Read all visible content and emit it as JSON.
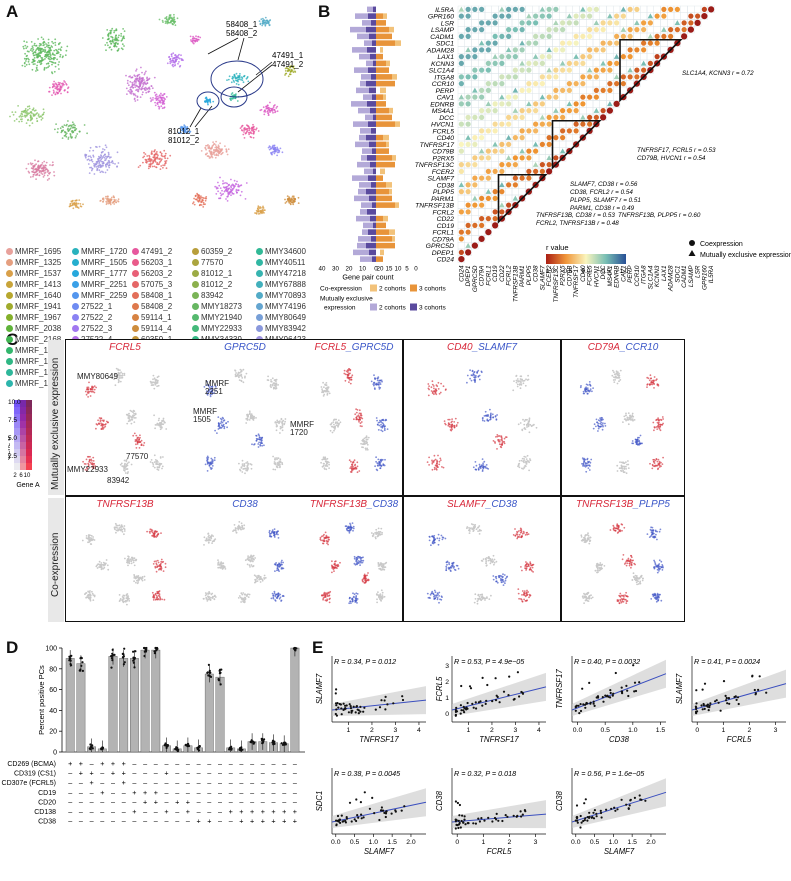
{
  "panels": {
    "a": "A",
    "b": "B",
    "c": "C",
    "d": "D",
    "e": "E"
  },
  "panel_a": {
    "annotations": [
      "58408_1",
      "58408_2",
      "47491_1",
      "47491_2",
      "81012_1",
      "81012_2"
    ],
    "legend_columns": [
      [
        {
          "label": "MMRF_1695",
          "color": "#e8a19b"
        },
        {
          "label": "MMRF_1325",
          "color": "#e59f80"
        },
        {
          "label": "MMRF_1537",
          "color": "#d9a04a"
        },
        {
          "label": "MMRF_1413",
          "color": "#c8a43a"
        },
        {
          "label": "MMRF_1640",
          "color": "#b7a72e"
        },
        {
          "label": "MMRF_1941",
          "color": "#a0ab2c"
        },
        {
          "label": "MMRF_1967",
          "color": "#84b02a"
        },
        {
          "label": "MMRF_2038",
          "color": "#5fb33a"
        },
        {
          "label": "MMRF_2168",
          "color": "#40b551"
        },
        {
          "label": "MMRF_1267",
          "color": "#32b66c"
        },
        {
          "label": "MMRF_1686",
          "color": "#2fb784"
        },
        {
          "label": "MMRF_1641",
          "color": "#2eb79a"
        },
        {
          "label": "MMRF_1424",
          "color": "#2db5ac"
        }
      ],
      [
        {
          "label": "MMRF_1720",
          "color": "#2ab2bd"
        },
        {
          "label": "MMRF_1505",
          "color": "#25aece"
        },
        {
          "label": "MMRF_1777",
          "color": "#27a8dc"
        },
        {
          "label": "MMRF_2251",
          "color": "#3aa0e7"
        },
        {
          "label": "MMRF_2259",
          "color": "#5496ee"
        },
        {
          "label": "27522_1",
          "color": "#6f8cf2"
        },
        {
          "label": "27522_2",
          "color": "#8a82f3"
        },
        {
          "label": "27522_3",
          "color": "#a178f0"
        },
        {
          "label": "27522_4",
          "color": "#b46fea"
        },
        {
          "label": "27522_5",
          "color": "#c566e0"
        },
        {
          "label": "27522_6",
          "color": "#d25fd3"
        },
        {
          "label": "37692_2",
          "color": "#dc5ac3"
        },
        {
          "label": "47491_1",
          "color": "#e358b1"
        }
      ],
      [
        {
          "label": "47491_2",
          "color": "#e7589e"
        },
        {
          "label": "56203_1",
          "color": "#e95b8a"
        },
        {
          "label": "56203_2",
          "color": "#e86077"
        },
        {
          "label": "57075_3",
          "color": "#e56767"
        },
        {
          "label": "58408_1",
          "color": "#e36f59"
        },
        {
          "label": "58408_2",
          "color": "#de794c"
        },
        {
          "label": "59114_1",
          "color": "#d78342"
        },
        {
          "label": "59114_4",
          "color": "#ce8d3c"
        },
        {
          "label": "60359_1",
          "color": "#c4963a"
        }
      ],
      [
        {
          "label": "60359_2",
          "color": "#b89e3b"
        },
        {
          "label": "77570",
          "color": "#aba53f"
        },
        {
          "label": "81012_1",
          "color": "#9cab45"
        },
        {
          "label": "81012_2",
          "color": "#8cb04d"
        },
        {
          "label": "83942",
          "color": "#7ab457"
        },
        {
          "label": "MMY18273",
          "color": "#67b762"
        },
        {
          "label": "MMY21940",
          "color": "#55b96e"
        },
        {
          "label": "MMY22933",
          "color": "#45ba7b"
        },
        {
          "label": "MMY34339",
          "color": "#38ba88"
        }
      ],
      [
        {
          "label": "MMY34600",
          "color": "#31b996"
        },
        {
          "label": "MMY40511",
          "color": "#31b7a3"
        },
        {
          "label": "MMY47218",
          "color": "#37b4b0"
        },
        {
          "label": "MMY67888",
          "color": "#42b0bc"
        },
        {
          "label": "MMY70893",
          "color": "#52abc7"
        },
        {
          "label": "MMY74196",
          "color": "#64a5d0"
        },
        {
          "label": "MMY80649",
          "color": "#779fd7"
        },
        {
          "label": "MMY83942",
          "color": "#8a98dc"
        },
        {
          "label": "MMY96423",
          "color": "#9d92de"
        }
      ]
    ]
  },
  "panel_b": {
    "genes": [
      "IL5RA",
      "GPR160",
      "LSR",
      "LSAMP",
      "CADM1",
      "SDC1",
      "ADAM28",
      "LAX1",
      "KCNN3",
      "SLC1A4",
      "ITGA8",
      "CCR10",
      "PERP",
      "CAV1",
      "EDNRB",
      "MS4A1",
      "DCC",
      "HVCN1",
      "FCRL5",
      "CD40",
      "TNFRSF17",
      "CD79B",
      "P2RX5",
      "TNFRSF13C",
      "FCER2",
      "SLAMF7",
      "CD38",
      "PLPP5",
      "PARM1",
      "TNFRSF13B",
      "FCRL2",
      "CD22",
      "CD19",
      "FCRL1",
      "CD79A",
      "GPRC5D",
      "DPEP1",
      "CD24"
    ],
    "annotations": [
      "SLC1A4, KCNN3 r = 0.72",
      "TNFRSF17, FCRL5 r = 0.53",
      "CD79B, HVCN1 r = 0.54",
      "SLAMF7, CD38 r = 0.56",
      "CD38, FCRL2 r = 0.54",
      "PLPP5, SLAMF7 r = 0.51",
      "PARM1, CD38 r = 0.49",
      "TNFRSF13B, CD38 r = 0.53",
      "TNFRSF13B, PLPP5 r = 0.60",
      "FCRL2, TNFRSF13B r = 0.48"
    ],
    "bar_axis_left": [
      "40",
      "30",
      "20",
      "10",
      "0"
    ],
    "bar_axis_right": [
      "20",
      "15",
      "10",
      "5",
      "0"
    ],
    "bar_axis_title": "Gene pair count",
    "bar_legend": {
      "coexp_label": "Co-expression",
      "mutex_label_1": "Mutually exclusive",
      "mutex_label_2": "expression",
      "items_coexp": [
        "2 cohorts",
        "3 cohorts"
      ],
      "items_mutex": [
        "2 cohorts",
        "3 cohorts"
      ]
    },
    "rvalue_title": "r value",
    "rvalue_ticks": [
      "1.0",
      "0.5",
      "0.0",
      "−0.5",
      "−1.0"
    ],
    "shape_legend": [
      "Coexpression",
      "Mutually exclusive expression"
    ],
    "colors": {
      "coexp_orange": "#e8943a",
      "coexp_light": "#f2c27a",
      "mutex_purple": "#5a4a9e",
      "mutex_light": "#b3a9d8"
    }
  },
  "panel_c": {
    "colorbar_ticks_b": [
      "10.0",
      "7.5",
      "5.0",
      "2.5"
    ],
    "colorbar_ticks_a": [
      "2",
      "6",
      "10"
    ],
    "gene_b_label": "Gene B",
    "gene_a_label": "Gene A",
    "row_labels": [
      "Mutually exclusive expression",
      "Co-expression"
    ],
    "rows": [
      [
        {
          "a": "FCRL5",
          "b": ""
        },
        {
          "a": "",
          "b": "GPRC5D"
        },
        {
          "a": "FCRL5",
          "b": "GPRC5D",
          "sep": "_"
        },
        {
          "a": "CD40",
          "b": "SLAMF7",
          "sep": "_"
        },
        {
          "a": "CD79A",
          "b": "CCR10",
          "sep": "_"
        }
      ],
      [
        {
          "a": "TNFRSF13B",
          "b": ""
        },
        {
          "a": "",
          "b": "CD38"
        },
        {
          "a": "TNFRSF13B",
          "b": "CD38",
          "sep": "_"
        },
        {
          "a": "SLAMF7",
          "b": "CD38",
          "sep": "_"
        },
        {
          "a": "TNFRSF13B",
          "b": "PLPP5",
          "sep": "_"
        }
      ]
    ],
    "annotations": [
      "MMY80649",
      "MMRF",
      "2251",
      "MMRF",
      "1505",
      "MMRF",
      "1720",
      "77570",
      "MMY22933",
      "83942"
    ]
  },
  "panel_d": {
    "ylabel": "Percent positive PCs",
    "yticks": [
      "0",
      "20",
      "40",
      "60",
      "80",
      "100"
    ],
    "values": [
      90,
      85,
      5,
      3,
      92,
      90,
      90,
      98,
      98,
      6,
      3,
      6,
      4,
      75,
      72,
      4,
      3,
      10,
      10,
      9,
      8,
      100
    ],
    "markers": [
      "CD269 (BCMA)",
      "CD319 (CS1)",
      "CD307e (FCRL5)",
      "CD19",
      "CD20",
      "CD138",
      "CD38"
    ],
    "signs": [
      "+ + - + + + - - - - - - - - - - - - - - - -",
      "- + + - + + - - - + - - - - - - - - - - - -",
      "- - + - - + - - - - - - - - - - - - - - - -",
      "- - - + - - + + + - - - - - - - - - - - - -",
      "- - - - - - - + + - + + - - - - - - - - - -",
      "- - - - - - + - - + - + - - - + + + + + + +",
      "- - - - - - - - - - - - + + - - + + + + + +"
    ]
  },
  "panel_e": {
    "plots": [
      {
        "stats": "R = 0.34, P = 0.012",
        "x": "TNFRSF17",
        "y": "SLAMF7",
        "xticks": [
          "1",
          "2",
          "3",
          "4"
        ],
        "xmin": 0.3,
        "xmax": 4.3,
        "yticks": [],
        "slope": 0.15
      },
      {
        "stats": "R = 0.53, P = 4.9e−05",
        "x": "TNFRSF17",
        "y": "FCRL5",
        "xticks": [
          "1",
          "2",
          "3",
          "4"
        ],
        "xmin": 0.3,
        "xmax": 4.3,
        "yticks": [
          "0",
          "1",
          "2",
          "3"
        ],
        "slope": 0.35
      },
      {
        "stats": "R = 0.40, P = 0.0032",
        "x": "CD38",
        "y": "TNFRSF17",
        "xticks": [
          "0.0",
          "0.5",
          "1.0",
          "1.5"
        ],
        "xmin": -0.1,
        "xmax": 1.6,
        "yticks": [],
        "slope": 0.55
      },
      {
        "stats": "R = 0.41, P = 0.0024",
        "x": "FCRL5",
        "y": "SLAMF7",
        "xticks": [
          "0",
          "1",
          "2",
          "3"
        ],
        "xmin": -0.2,
        "xmax": 3.4,
        "yticks": [],
        "slope": 0.4
      },
      {
        "stats": "R = 0.38, P = 0.0045",
        "x": "SLAMF7",
        "y": "SDC1",
        "xticks": [
          "0.0",
          "0.5",
          "1.0",
          "1.5",
          "2.0"
        ],
        "xmin": -0.1,
        "xmax": 2.4,
        "yticks": [],
        "slope": 0.3
      },
      {
        "stats": "R = 0.32, P = 0.018",
        "x": "FCRL5",
        "y": "CD38",
        "xticks": [
          "0",
          "1",
          "2",
          "3"
        ],
        "xmin": -0.2,
        "xmax": 3.4,
        "yticks": [],
        "slope": 0.12
      },
      {
        "stats": "R = 0.56, P = 1.6e−05",
        "x": "SLAMF7",
        "y": "CD38",
        "xticks": [
          "0.0",
          "0.5",
          "1.0",
          "1.5",
          "2.0"
        ],
        "xmin": -0.1,
        "xmax": 2.4,
        "yticks": [],
        "slope": 0.45
      }
    ]
  }
}
